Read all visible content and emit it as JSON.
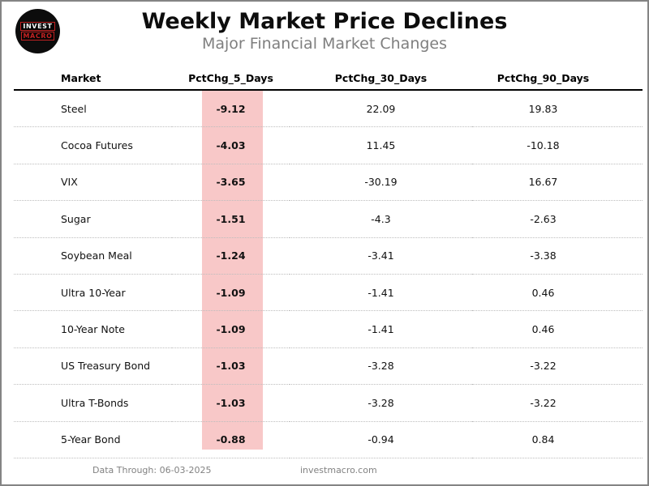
{
  "logo": {
    "line1": "INVEST",
    "line2": "MACRO"
  },
  "header": {
    "title": "Weekly Market Price Declines",
    "subtitle": "Major Financial Market Changes"
  },
  "chart_data": {
    "type": "table",
    "title": "Weekly Market Price Declines",
    "subtitle": "Major Financial Market Changes",
    "columns": [
      "Market",
      "PctChg_5_Days",
      "PctChg_30_Days",
      "PctChg_90_Days"
    ],
    "rows": [
      [
        "Steel",
        -9.12,
        22.09,
        19.83
      ],
      [
        "Cocoa Futures",
        -4.03,
        11.45,
        -10.18
      ],
      [
        "VIX",
        -3.65,
        -30.19,
        16.67
      ],
      [
        "Sugar",
        -1.51,
        -4.3,
        -2.63
      ],
      [
        "Soybean Meal",
        -1.24,
        -3.41,
        -3.38
      ],
      [
        "Ultra 10-Year",
        -1.09,
        -1.41,
        0.46
      ],
      [
        "10-Year Note",
        -1.09,
        -1.41,
        0.46
      ],
      [
        "US Treasury Bond",
        -1.03,
        -3.28,
        -3.22
      ],
      [
        "Ultra T-Bonds",
        -1.03,
        -3.28,
        -3.22
      ],
      [
        "5-Year Bond",
        -0.88,
        -0.94,
        0.84
      ]
    ],
    "highlighted_column": "PctChg_5_Days",
    "highlight_color": "#f8c8c8",
    "layout": {
      "grid": "dotted-row-separators",
      "header_rule": "solid-black"
    }
  },
  "footer": {
    "data_through": "Data Through: 06-03-2025",
    "website": "investmacro.com"
  },
  "colors": {
    "highlight_pink": "#f8c8c8",
    "subtitle_gray": "#7f7f7f",
    "page_border_gray": "#848484",
    "logo_red": "#c32222",
    "logo_black": "#0c0c0c"
  }
}
